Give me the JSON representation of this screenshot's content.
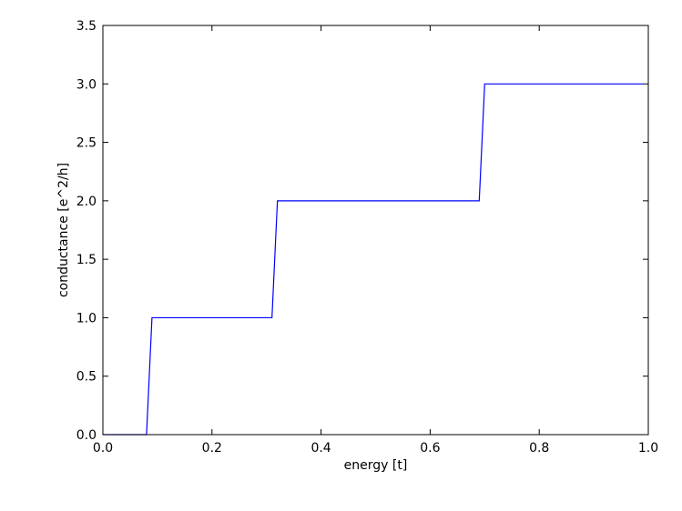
{
  "chart_data": {
    "type": "line",
    "xlabel": "energy [t]",
    "ylabel": "conductance [e^2/h]",
    "xlim": [
      0.0,
      1.0
    ],
    "ylim": [
      0.0,
      3.5
    ],
    "xticks": [
      "0.0",
      "0.2",
      "0.4",
      "0.6",
      "0.8",
      "1.0"
    ],
    "yticks": [
      "0.0",
      "0.5",
      "1.0",
      "1.5",
      "2.0",
      "2.5",
      "3.0",
      "3.5"
    ],
    "grid": false,
    "series": [
      {
        "color": "#0000ff",
        "x": [
          0.0,
          0.08,
          0.09,
          0.31,
          0.32,
          0.69,
          0.7,
          0.99
        ],
        "y": [
          0.0,
          0.0,
          1.0,
          1.0,
          2.0,
          2.0,
          3.0,
          3.0
        ]
      }
    ]
  }
}
